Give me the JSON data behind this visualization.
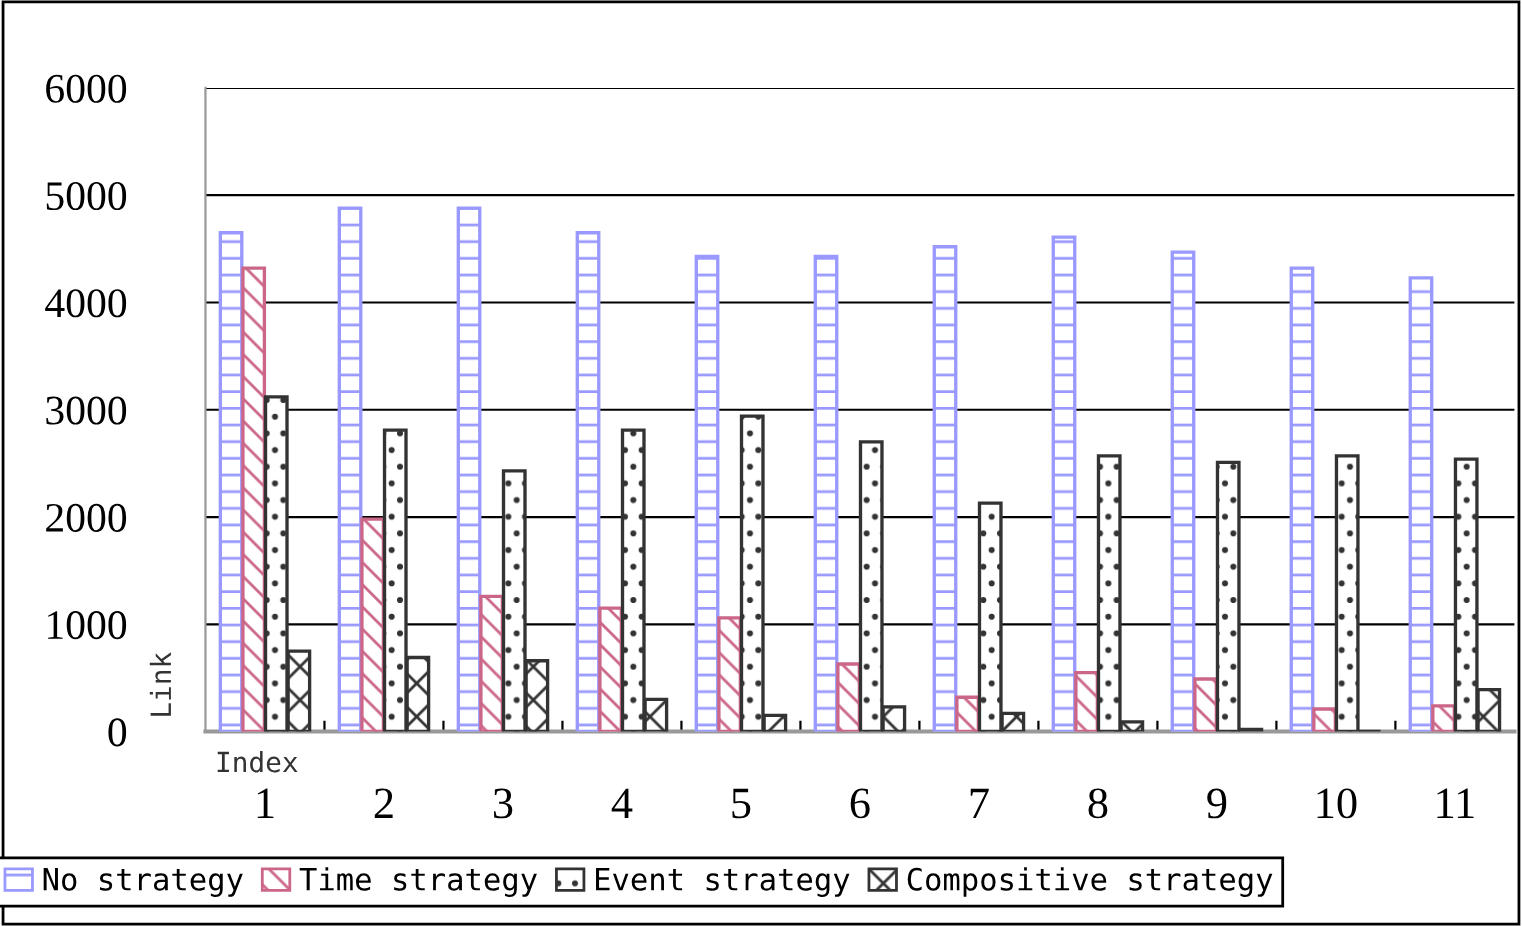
{
  "chart_data": {
    "type": "bar",
    "xlabel": "Index",
    "ylabel": "Link",
    "categories": [
      "1",
      "2",
      "3",
      "4",
      "5",
      "6",
      "7",
      "8",
      "9",
      "10",
      "11"
    ],
    "series": [
      {
        "name": "No strategy",
        "color": "#9999ff",
        "values": [
          4650,
          4880,
          4880,
          4650,
          4430,
          4430,
          4520,
          4610,
          4470,
          4320,
          4230
        ]
      },
      {
        "name": "Time strategy",
        "color": "#cc6688",
        "values": [
          4320,
          1980,
          1260,
          1150,
          1060,
          630,
          320,
          550,
          490,
          210,
          240
        ]
      },
      {
        "name": "Event strategy",
        "color": "#333333",
        "values": [
          3120,
          2810,
          2430,
          2810,
          2940,
          2700,
          2130,
          2570,
          2510,
          2570,
          2540
        ]
      },
      {
        "name": "Compositive strategy",
        "color": "#333333",
        "values": [
          750,
          690,
          660,
          300,
          150,
          230,
          170,
          90,
          20,
          0,
          390
        ]
      }
    ],
    "ylim": [
      0,
      6000
    ],
    "yticks": [
      0,
      1000,
      2000,
      3000,
      4000,
      5000,
      6000
    ],
    "grid": "y",
    "legend": "bottom"
  }
}
